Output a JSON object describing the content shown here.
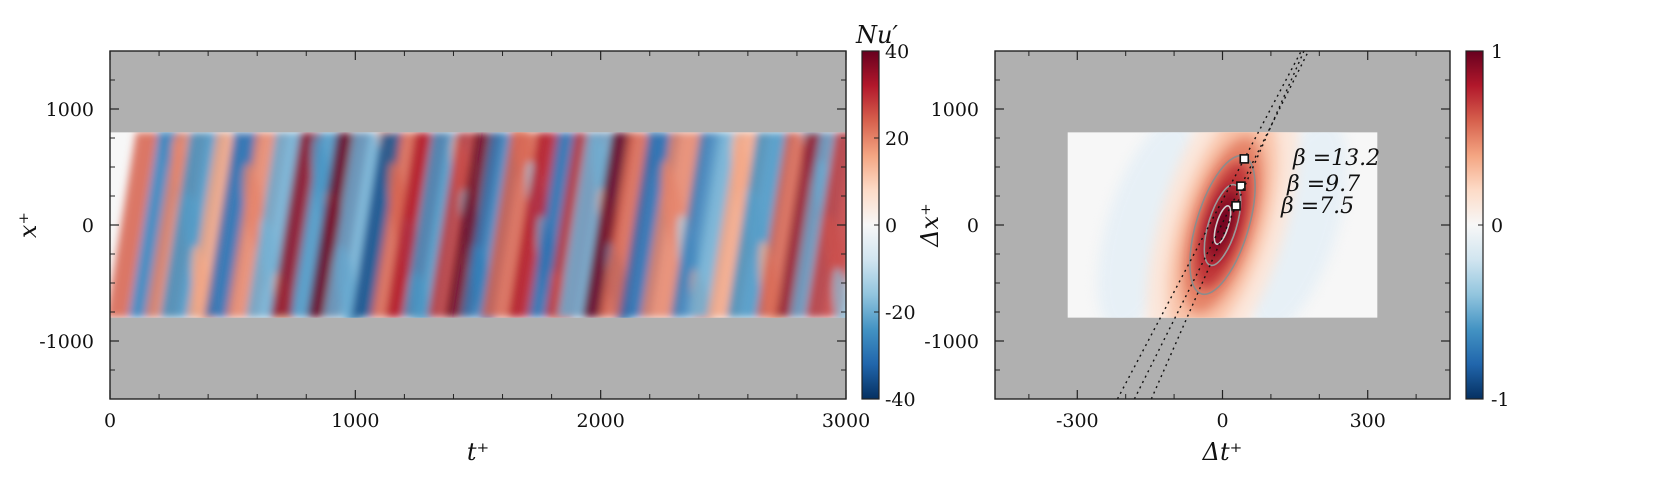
{
  "chart_data": [
    {
      "type": "heatmap",
      "xlabel": "t⁺",
      "ylabel": "x⁺",
      "xlim": [
        0,
        3000
      ],
      "ylim": [
        -1500,
        1500
      ],
      "xticks": [
        "0",
        "1000",
        "2000",
        "3000"
      ],
      "yticks": [
        "1000",
        "0",
        "-1000"
      ],
      "data_extent": {
        "x": [
          0,
          3000
        ],
        "y": [
          -800,
          800
        ]
      },
      "background_color": "#b0b0b0",
      "colorbar": {
        "label": "Nu′",
        "range": [
          -40,
          40
        ],
        "ticks": [
          "40",
          "20",
          "0",
          "-20",
          "-40"
        ],
        "colormap": "RdBu_r"
      },
      "streaks": [
        {
          "t": 90,
          "v": 0.6
        },
        {
          "t": 190,
          "v": -0.7
        },
        {
          "t": 270,
          "v": 0.5
        },
        {
          "t": 340,
          "v": -0.6
        },
        {
          "t": 420,
          "v": 0.4
        },
        {
          "t": 500,
          "v": -0.8
        },
        {
          "t": 600,
          "v": 0.5
        },
        {
          "t": 690,
          "v": -0.5
        },
        {
          "t": 760,
          "v": 0.9
        },
        {
          "t": 850,
          "v": -0.6
        },
        {
          "t": 930,
          "v": 1.0
        },
        {
          "t": 1010,
          "v": -0.5
        },
        {
          "t": 1090,
          "v": -0.9
        },
        {
          "t": 1180,
          "v": 0.6
        },
        {
          "t": 1250,
          "v": 0.8
        },
        {
          "t": 1330,
          "v": -0.6
        },
        {
          "t": 1400,
          "v": 0.7
        },
        {
          "t": 1480,
          "v": 1.0
        },
        {
          "t": 1560,
          "v": -0.7
        },
        {
          "t": 1650,
          "v": 0.6
        },
        {
          "t": 1730,
          "v": 0.8
        },
        {
          "t": 1820,
          "v": -0.8
        },
        {
          "t": 1900,
          "v": 0.7
        },
        {
          "t": 1960,
          "v": -0.5
        },
        {
          "t": 2030,
          "v": 1.0
        },
        {
          "t": 2110,
          "v": 0.6
        },
        {
          "t": 2200,
          "v": -0.8
        },
        {
          "t": 2300,
          "v": 0.5
        },
        {
          "t": 2390,
          "v": -0.7
        },
        {
          "t": 2470,
          "v": -0.5
        },
        {
          "t": 2560,
          "v": 0.4
        },
        {
          "t": 2650,
          "v": -0.6
        },
        {
          "t": 2740,
          "v": 0.6
        },
        {
          "t": 2830,
          "v": 0.9
        },
        {
          "t": 2900,
          "v": -0.5
        },
        {
          "t": 2970,
          "v": 0.7
        }
      ]
    },
    {
      "type": "heatmap",
      "xlabel": "Δt⁺",
      "ylabel": "Δx⁺",
      "xlim": [
        -470,
        470
      ],
      "ylim": [
        -1500,
        1500
      ],
      "xticks": [
        "-300",
        "0",
        "300"
      ],
      "yticks": [
        "1000",
        "0",
        "-1000"
      ],
      "data_extent": {
        "x": [
          -320,
          320
        ],
        "y": [
          -800,
          800
        ]
      },
      "background_color": "#b0b0b0",
      "colorbar": {
        "range": [
          -1,
          1
        ],
        "ticks": [
          "1",
          "0",
          "-1"
        ],
        "colormap": "RdBu_r"
      },
      "correlation_peak": {
        "dt": 0,
        "dx": 0,
        "value": 1
      },
      "lines": [
        {
          "beta": 13.2,
          "label": "β =13.2",
          "marker": {
            "dt": 45,
            "dx": 570
          }
        },
        {
          "beta": 9.7,
          "label": "β =9.7",
          "marker": {
            "dt": 38,
            "dx": 335
          }
        },
        {
          "beta": 7.5,
          "label": "β =7.5",
          "marker": {
            "dt": 28,
            "dx": 165
          }
        }
      ]
    }
  ]
}
